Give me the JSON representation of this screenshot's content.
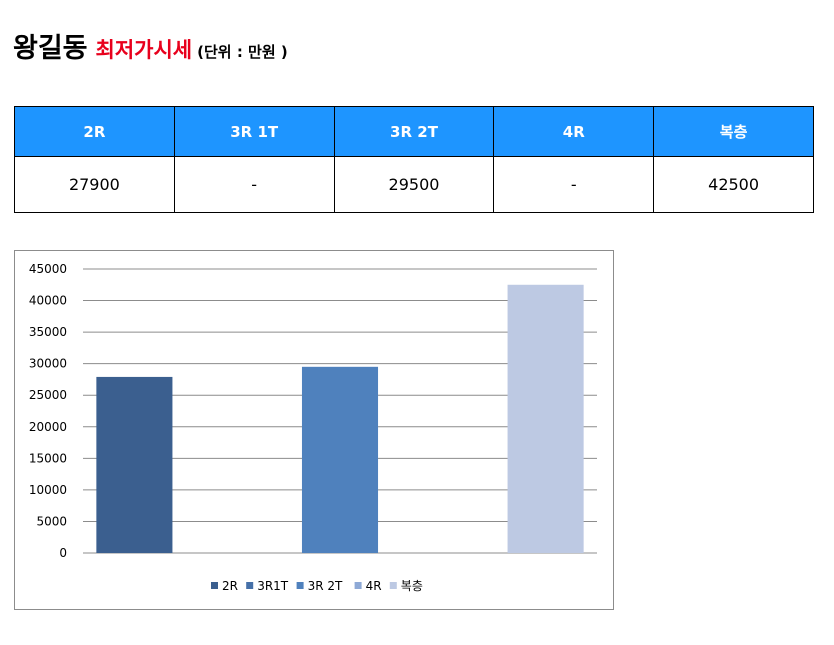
{
  "header": {
    "title": "왕길동",
    "subtitle": "최저가시세",
    "unit": "(단위 : 만원 )"
  },
  "table": {
    "headers": [
      "2R",
      "3R 1T",
      "3R 2T",
      "4R",
      "복층"
    ],
    "values": [
      "27900",
      "-",
      "29500",
      "-",
      "42500"
    ]
  },
  "colors": {
    "header_bg": "#1e95ff",
    "title_accent": "#e8001c"
  },
  "chart_data": {
    "type": "bar",
    "categories": [
      "2R",
      "3R1T",
      "3R 2T",
      "4R",
      "복층"
    ],
    "values": [
      27900,
      null,
      29500,
      null,
      42500
    ],
    "colors": [
      "#3b5f8f",
      "#4570a8",
      "#4f81bd",
      "#8ea9d6",
      "#bdc9e3"
    ],
    "ylim": [
      0,
      45000
    ],
    "yticks": [
      0,
      5000,
      10000,
      15000,
      20000,
      25000,
      30000,
      35000,
      40000,
      45000
    ],
    "grid": true,
    "legend": "bottom",
    "title": "",
    "xlabel": "",
    "ylabel": ""
  }
}
